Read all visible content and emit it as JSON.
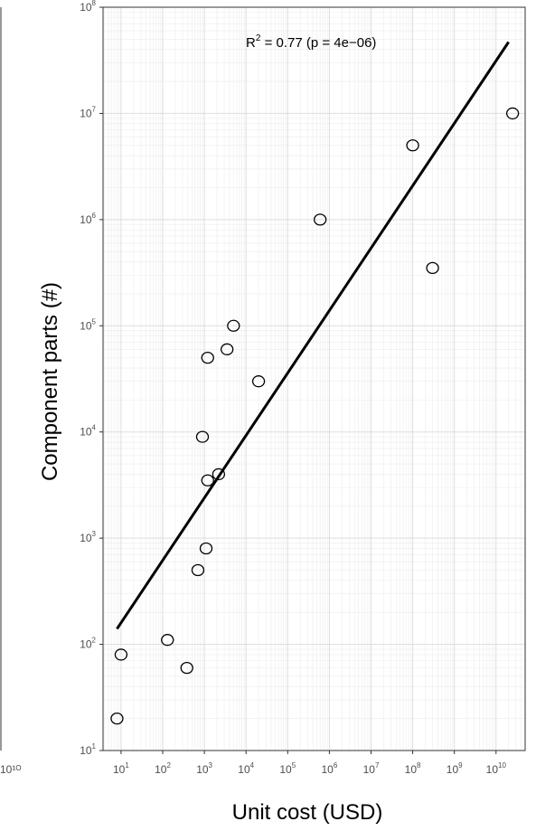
{
  "chart_data": {
    "type": "scatter",
    "xlabel": "Unit cost (USD)",
    "ylabel": "Component parts (#)",
    "x_scale": "log10",
    "y_scale": "log10",
    "xlim": [
      3.7,
      50000000000
    ],
    "ylim": [
      10,
      100000000
    ],
    "x_ticks": [
      {
        "base": "10",
        "exp": "1"
      },
      {
        "base": "10",
        "exp": "2"
      },
      {
        "base": "10",
        "exp": "3"
      },
      {
        "base": "10",
        "exp": "4"
      },
      {
        "base": "10",
        "exp": "5"
      },
      {
        "base": "10",
        "exp": "6"
      },
      {
        "base": "10",
        "exp": "7"
      },
      {
        "base": "10",
        "exp": "8"
      },
      {
        "base": "10",
        "exp": "9"
      },
      {
        "base": "10",
        "exp": "10"
      }
    ],
    "y_ticks": [
      {
        "base": "10",
        "exp": "1"
      },
      {
        "base": "10",
        "exp": "2"
      },
      {
        "base": "10",
        "exp": "3"
      },
      {
        "base": "10",
        "exp": "4"
      },
      {
        "base": "10",
        "exp": "5"
      },
      {
        "base": "10",
        "exp": "6"
      },
      {
        "base": "10",
        "exp": "7"
      },
      {
        "base": "10",
        "exp": "8"
      }
    ],
    "points": [
      {
        "x": 8,
        "y": 20
      },
      {
        "x": 10,
        "y": 80
      },
      {
        "x": 130,
        "y": 110
      },
      {
        "x": 380,
        "y": 60
      },
      {
        "x": 700,
        "y": 500
      },
      {
        "x": 1100,
        "y": 800
      },
      {
        "x": 900,
        "y": 9000
      },
      {
        "x": 1200,
        "y": 3500
      },
      {
        "x": 2200,
        "y": 4000
      },
      {
        "x": 1200,
        "y": 50000
      },
      {
        "x": 3500,
        "y": 60000
      },
      {
        "x": 5000,
        "y": 100000
      },
      {
        "x": 20000,
        "y": 30000
      },
      {
        "x": 600000,
        "y": 1000000
      },
      {
        "x": 100000000,
        "y": 5000000
      },
      {
        "x": 300000000,
        "y": 350000
      },
      {
        "x": 25000000000,
        "y": 10000000
      }
    ],
    "fit_line": {
      "x": [
        8,
        20000000000
      ],
      "y": [
        140,
        47000000
      ]
    },
    "annotation": {
      "r2_label": "R",
      "r2_sup": "2",
      "text": " = 0.77  (p = 4e−06)"
    },
    "grid": true,
    "legend": "none"
  },
  "left_panel": {
    "edge_label": "10¹ᴼ"
  }
}
